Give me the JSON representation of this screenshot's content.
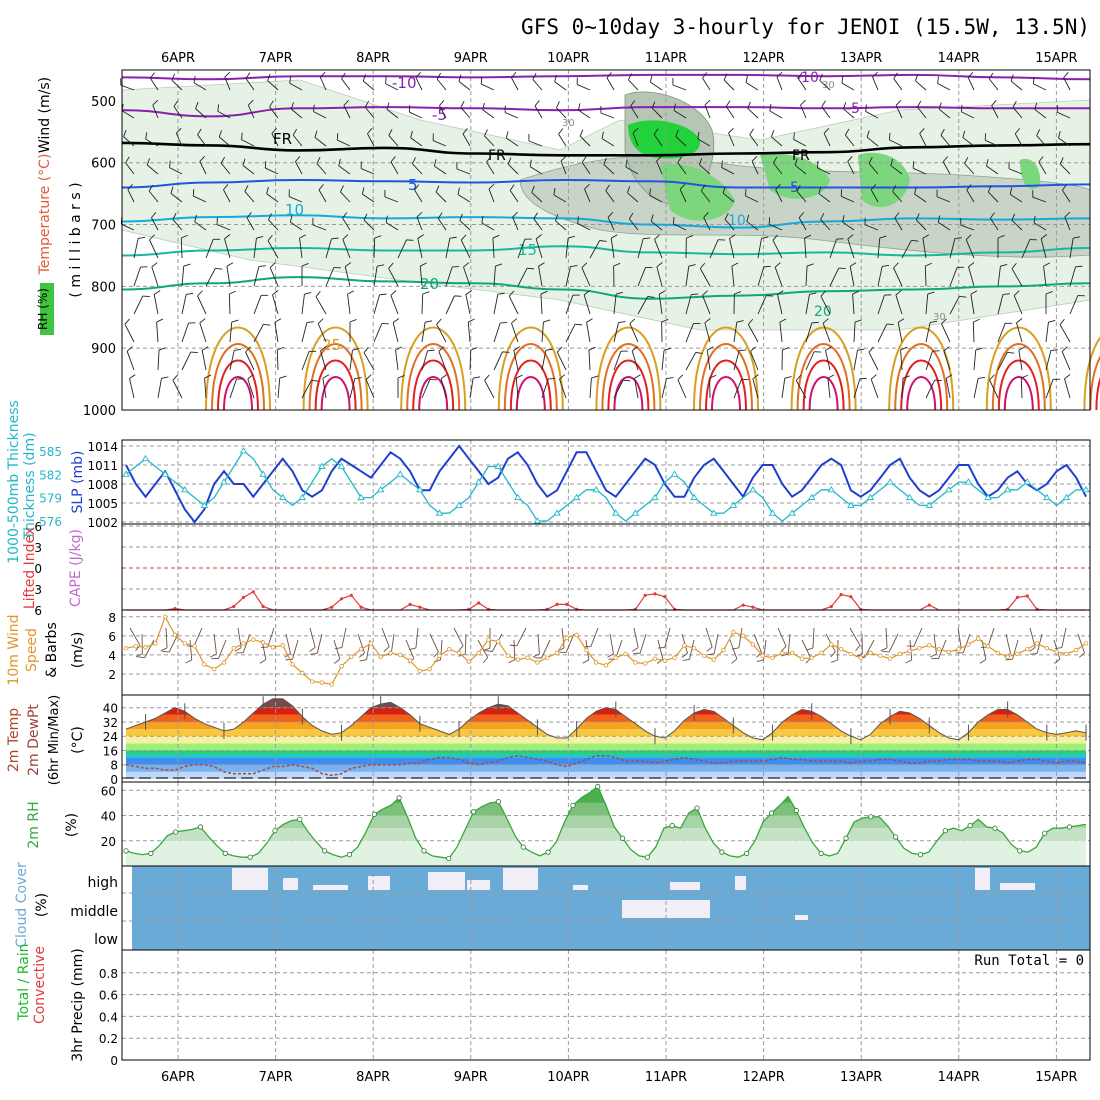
{
  "title": "GFS 0~10day 3-hourly for JENOI (15.5W, 13.5N)",
  "colors": {
    "grid": "#9a9a9a",
    "slp": "#1e3fd0",
    "thickness": "#22b8c8",
    "lifted_index": "#e03a3a",
    "wind": "#e0962a",
    "rh_green": "#36a83a",
    "cloud": "#6aaad6",
    "cloud_gap": "#f2eef8",
    "temp_purple": "#8a1fb0",
    "temp_blue": "#2255dd",
    "temp_cyan": "#17a8e0",
    "temp_teal": "#18b8a0",
    "temp_green": "#10a878",
    "temp_gold": "#d8a020",
    "temp_orange": "#e07020",
    "temp_red": "#e02020",
    "temp_magenta": "#d0106a",
    "freezing": "#000000"
  },
  "chart_data": [
    {
      "panel": "upper-air",
      "type": "contour",
      "ylabel_parts": [
        "Wind (m/s)",
        "Temperature (°C)",
        "RH (%)"
      ],
      "yaxis_label": "( m i l l i b a r s )",
      "yticks": [
        500,
        600,
        700,
        800,
        900,
        1000
      ],
      "ylim": [
        450,
        1000
      ],
      "top_dates": [
        "6APR",
        "7APR",
        "8APR",
        "9APR",
        "10APR",
        "11APR",
        "12APR",
        "13APR",
        "14APR",
        "15APR"
      ],
      "isotherm_labels": [
        {
          "value": "-10",
          "color": "temp_purple"
        },
        {
          "value": "-5",
          "color": "temp_purple"
        },
        {
          "value": "FR",
          "color": "freezing"
        },
        {
          "value": "5",
          "color": "temp_blue"
        },
        {
          "value": "10",
          "color": "temp_cyan"
        },
        {
          "value": "15",
          "color": "temp_teal"
        },
        {
          "value": "20",
          "color": "temp_green"
        },
        {
          "value": "25",
          "color": "temp_gold"
        }
      ],
      "isotherms": [
        {
          "name": "-10",
          "p": [
            462,
            465,
            460,
            460,
            462,
            460,
            458,
            458,
            460,
            458,
            462,
            465
          ]
        },
        {
          "name": "-5",
          "p": [
            515,
            525,
            512,
            510,
            512,
            515,
            510,
            510,
            512,
            510,
            512,
            512
          ]
        },
        {
          "name": "FR",
          "p": [
            568,
            572,
            580,
            576,
            585,
            588,
            588,
            585,
            583,
            575,
            572,
            570
          ]
        },
        {
          "name": "5",
          "p": [
            640,
            632,
            628,
            630,
            632,
            628,
            630,
            640,
            640,
            640,
            638,
            635
          ]
        },
        {
          "name": "10",
          "p": [
            695,
            688,
            685,
            690,
            688,
            690,
            700,
            705,
            695,
            690,
            692,
            690
          ]
        },
        {
          "name": "15",
          "p": [
            750,
            742,
            738,
            742,
            742,
            735,
            745,
            748,
            745,
            750,
            745,
            738
          ]
        },
        {
          "name": "20",
          "p": [
            805,
            795,
            785,
            792,
            795,
            805,
            820,
            815,
            808,
            805,
            800,
            795
          ]
        }
      ],
      "rh_labels": [
        "30",
        "30",
        "30"
      ]
    },
    {
      "panel": "slp-thickness",
      "type": "line",
      "ylabel_left": "1000-500mb Thickness (dm)",
      "ylabel_right": "SLP (mb)",
      "thickness_ticks": [
        576,
        579,
        582,
        585
      ],
      "slp_ticks": [
        1002,
        1005,
        1008,
        1011,
        1014
      ],
      "series": [
        {
          "name": "SLP (mb)",
          "axis": "slp",
          "values": [
            1011,
            1008,
            1006,
            1008,
            1010,
            1007,
            1004,
            1002,
            1004,
            1008,
            1010,
            1008,
            1008,
            1006,
            1008,
            1010,
            1012,
            1010,
            1007,
            1006,
            1007,
            1010,
            1012,
            1011,
            1010,
            1009,
            1011,
            1013,
            1012,
            1010,
            1007,
            1007,
            1010,
            1012,
            1014,
            1012,
            1010,
            1008,
            1009,
            1012,
            1013,
            1011,
            1008,
            1006,
            1007,
            1010,
            1013,
            1013,
            1010,
            1007,
            1006,
            1008,
            1010,
            1012,
            1011,
            1008,
            1006,
            1006,
            1009,
            1011,
            1012,
            1010,
            1008,
            1006,
            1009,
            1011,
            1011,
            1008,
            1006,
            1007,
            1009,
            1011,
            1012,
            1011,
            1007,
            1006,
            1007,
            1009,
            1011,
            1012,
            1009,
            1007,
            1006,
            1007,
            1009,
            1011,
            1011,
            1008,
            1006,
            1007,
            1009,
            1010,
            1008,
            1007,
            1008,
            1010,
            1011,
            1009,
            1006
          ]
        },
        {
          "name": "1000-500mb Thickness (dm)",
          "axis": "thickness",
          "values": [
            582,
            583,
            584,
            583,
            582,
            581,
            580,
            579,
            578,
            579,
            581,
            583,
            585,
            584,
            582,
            580,
            579,
            578,
            579,
            581,
            583,
            584,
            583,
            581,
            579,
            579,
            580,
            581,
            582,
            581,
            580,
            578,
            577,
            577,
            578,
            579,
            581,
            583,
            583,
            581,
            579,
            578,
            576,
            576,
            577,
            578,
            579,
            580,
            580,
            579,
            577,
            576,
            577,
            578,
            579,
            581,
            582,
            581,
            579,
            578,
            577,
            577,
            578,
            579,
            580,
            579,
            577,
            576,
            577,
            578,
            579,
            580,
            580,
            579,
            578,
            578,
            579,
            580,
            581,
            580,
            579,
            578,
            578,
            579,
            580,
            581,
            581,
            580,
            579,
            579,
            580,
            580,
            581,
            580,
            579,
            578,
            579,
            580,
            580
          ]
        }
      ]
    },
    {
      "panel": "lifted-index-cape",
      "type": "line",
      "ylabel_left": "Lifted Index",
      "ylabel_right": "CAPE (J/kg)",
      "yticks": [
        6,
        3,
        0,
        -3,
        -6
      ],
      "ylim": [
        6,
        -6
      ],
      "zero_line": 0,
      "series": [
        {
          "name": "Lifted Index",
          "values": [
            6,
            6,
            6,
            6,
            6,
            5.8,
            6,
            6,
            6,
            6,
            6,
            5.5,
            4.2,
            3.4,
            5.5,
            6,
            6,
            6,
            6,
            6,
            6,
            5.6,
            4.4,
            3.9,
            5.6,
            6,
            6,
            6,
            6,
            5.2,
            5.6,
            6,
            6,
            6,
            6,
            5.9,
            5,
            5.9,
            6,
            6,
            6,
            6,
            6,
            5.9,
            5.2,
            5.2,
            5.9,
            6,
            6,
            6,
            6,
            6,
            5.9,
            3.9,
            3.7,
            4.1,
            5.9,
            6,
            6,
            6,
            6,
            6,
            6,
            5.3,
            5.6,
            6,
            6,
            6,
            6,
            6,
            6,
            6,
            5.5,
            3.8,
            4.1,
            5.9,
            6,
            6,
            6,
            6,
            6,
            6,
            5.3,
            6,
            6,
            6,
            6,
            6,
            6,
            6,
            5.9,
            4.2,
            4,
            5.9,
            6,
            6,
            6,
            6,
            6
          ]
        }
      ]
    },
    {
      "panel": "10m-wind",
      "type": "line",
      "ylabel": "10m Wind Speed & Barbs (m/s)",
      "yticks": [
        2,
        4,
        6,
        8
      ],
      "ylim": [
        0,
        8.5
      ],
      "series": [
        {
          "name": "10m Wind Speed (m/s)",
          "values": [
            4.7,
            4.9,
            4.8,
            5.2,
            8,
            6.1,
            5.2,
            4.9,
            3,
            2.5,
            3.2,
            4.7,
            5.2,
            5.6,
            5.3,
            4.8,
            5,
            3,
            2.1,
            1.2,
            1.1,
            0.9,
            2.8,
            3.8,
            4.6,
            5.2,
            3.8,
            4.2,
            4,
            3.4,
            2.3,
            2.5,
            3.9,
            4.6,
            4.2,
            3.3,
            4.2,
            5.6,
            5.4,
            3.9,
            3.5,
            3.7,
            3.2,
            3.7,
            4.2,
            5.8,
            6.1,
            4.5,
            3.2,
            2.9,
            3.7,
            4.1,
            3.2,
            3.1,
            3.6,
            3.4,
            3.7,
            5,
            4.7,
            3.9,
            3.5,
            4.5,
            6.4,
            6,
            5.1,
            3.9,
            3.7,
            4.2,
            4.2,
            3.6,
            3.7,
            4.2,
            5.1,
            4.6,
            4.1,
            3.7,
            4.2,
            3.9,
            3.6,
            4.1,
            4.4,
            4.7,
            5,
            4.6,
            4.3,
            4.6,
            5.1,
            5.7,
            4.9,
            4.2,
            3.8,
            4.1,
            4.6,
            5.2,
            4.7,
            4.3,
            4.1,
            4.5,
            5.2
          ]
        }
      ]
    },
    {
      "panel": "2m-temp",
      "type": "area",
      "ylabel": "2m Temp 2m DewPt (6hr Min/Max) (°C)",
      "yticks": [
        0,
        8,
        16,
        24,
        32,
        40
      ],
      "ylim": [
        0,
        46
      ],
      "series": [
        {
          "name": "2m Temp (°C)",
          "values": [
            28,
            30,
            32,
            34,
            37,
            40,
            38,
            34,
            31,
            29,
            27,
            28,
            32,
            37,
            42,
            45,
            45,
            41,
            35,
            30,
            27,
            25,
            26,
            30,
            35,
            40,
            42,
            43,
            40,
            36,
            31,
            29,
            27,
            25,
            28,
            33,
            37,
            40,
            42,
            41,
            37,
            33,
            29,
            25,
            23,
            23,
            28,
            34,
            38,
            40,
            39,
            35,
            31,
            27,
            24,
            23,
            27,
            33,
            37,
            39,
            38,
            34,
            30,
            26,
            23,
            22,
            26,
            32,
            36,
            39,
            38,
            35,
            31,
            27,
            24,
            22,
            25,
            31,
            35,
            38,
            37,
            34,
            30,
            26,
            23,
            22,
            26,
            32,
            36,
            39,
            39,
            36,
            32,
            28,
            26,
            25,
            26,
            27,
            26
          ]
        },
        {
          "name": "2m DewPt (°C)",
          "values": [
            8,
            7,
            6,
            6,
            5,
            5,
            7,
            8,
            8,
            7,
            4,
            3,
            3,
            3,
            5,
            7,
            7,
            8,
            7,
            6,
            3,
            2,
            3,
            6,
            7,
            8,
            8,
            8,
            8,
            9,
            9,
            11,
            12,
            12,
            11,
            9,
            8,
            9,
            10,
            12,
            13,
            12,
            11,
            10,
            8,
            7,
            9,
            11,
            13,
            13,
            12,
            10,
            10,
            10,
            9,
            10,
            11,
            12,
            11,
            10,
            9,
            9,
            10,
            10,
            10,
            10,
            11,
            12,
            11,
            11,
            10,
            10,
            10,
            10,
            9,
            10,
            10,
            11,
            11,
            10,
            9,
            9,
            10,
            10,
            11,
            11,
            11,
            10,
            10,
            10,
            9,
            10,
            11,
            11,
            10,
            9,
            10,
            10,
            9
          ]
        }
      ]
    },
    {
      "panel": "2m-rh",
      "type": "area",
      "ylabel": "2m RH (%)",
      "yticks": [
        20,
        40,
        60
      ],
      "ylim": [
        0,
        65
      ],
      "series": [
        {
          "name": "2m RH (%)",
          "values": [
            12,
            10,
            9,
            10,
            16,
            24,
            27,
            28,
            29,
            31,
            23,
            16,
            10,
            8,
            7,
            7,
            10,
            18,
            28,
            33,
            36,
            37,
            27,
            19,
            12,
            9,
            7,
            9,
            15,
            27,
            41,
            45,
            48,
            54,
            39,
            22,
            12,
            8,
            7,
            6,
            15,
            29,
            43,
            47,
            50,
            51,
            38,
            24,
            15,
            11,
            8,
            11,
            19,
            35,
            48,
            54,
            58,
            63,
            48,
            31,
            22,
            13,
            8,
            7,
            15,
            30,
            32,
            30,
            42,
            46,
            30,
            18,
            11,
            8,
            7,
            10,
            20,
            35,
            42,
            48,
            55,
            44,
            30,
            18,
            10,
            8,
            10,
            22,
            35,
            38,
            39,
            39,
            32,
            23,
            14,
            10,
            9,
            11,
            20,
            28,
            30,
            28,
            32,
            37,
            31,
            30,
            26,
            17,
            12,
            11,
            15,
            26,
            30,
            30,
            31,
            32,
            33
          ]
        }
      ]
    },
    {
      "panel": "cloud-cover",
      "type": "bar",
      "ylabel": "Cloud Cover (%)",
      "levels": [
        "high",
        "middle",
        "low"
      ]
    },
    {
      "panel": "precip",
      "type": "bar",
      "ylabel_parts": [
        "Total / Rain",
        "Convective",
        "3hr Precip (mm)"
      ],
      "yticks": [
        0,
        0.2,
        0.4,
        0.6,
        0.8
      ],
      "ylim": [
        0,
        1
      ],
      "annotation": "Run Total = 0",
      "values": [],
      "bottom_dates": [
        "6APR",
        "7APR",
        "8APR",
        "9APR",
        "10APR",
        "11APR",
        "12APR",
        "13APR",
        "14APR",
        "15APR"
      ]
    }
  ]
}
